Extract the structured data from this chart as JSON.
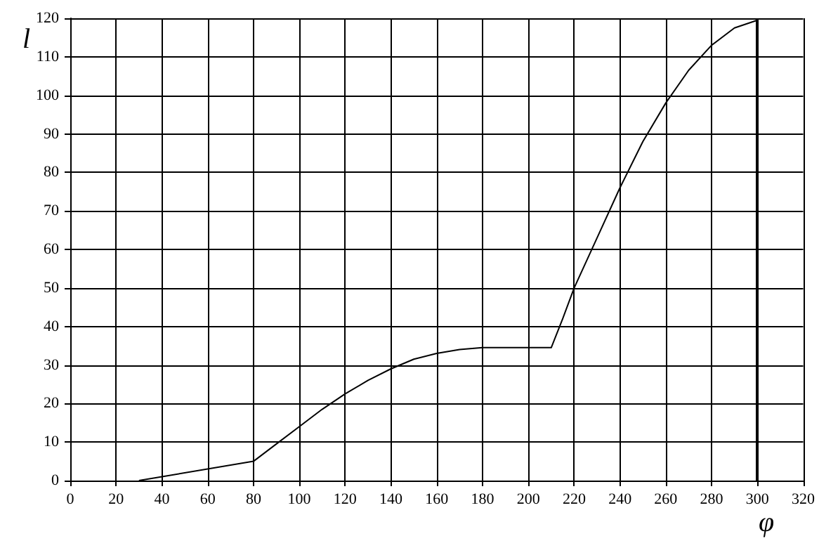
{
  "chart_data": {
    "type": "line",
    "xlabel": "φ",
    "ylabel": "l",
    "x": [
      30,
      80,
      90,
      100,
      110,
      120,
      130,
      140,
      150,
      160,
      170,
      180,
      210,
      215,
      220,
      230,
      240,
      250,
      260,
      270,
      280,
      290,
      300
    ],
    "series": [
      {
        "color": "#000000",
        "values": [
          0,
          5,
          9.5,
          14,
          18.5,
          22.5,
          26,
          29,
          31.5,
          33,
          34,
          34.5,
          34.5,
          42,
          50,
          63,
          76,
          88,
          98,
          106.5,
          113,
          117.5,
          119.5
        ]
      }
    ],
    "xlim": [
      0,
      320
    ],
    "xticks": [
      0,
      20,
      40,
      60,
      80,
      100,
      120,
      140,
      160,
      180,
      200,
      220,
      240,
      260,
      280,
      300,
      320
    ],
    "ylim": [
      0,
      120
    ],
    "yticks": [
      0,
      10,
      20,
      30,
      40,
      50,
      60,
      70,
      80,
      90,
      100,
      110,
      120
    ],
    "ref_lines": [
      {
        "axis": "x",
        "value": 300,
        "color": "#000000"
      }
    ],
    "grid": true,
    "marker": "none",
    "line_style": "solid"
  }
}
